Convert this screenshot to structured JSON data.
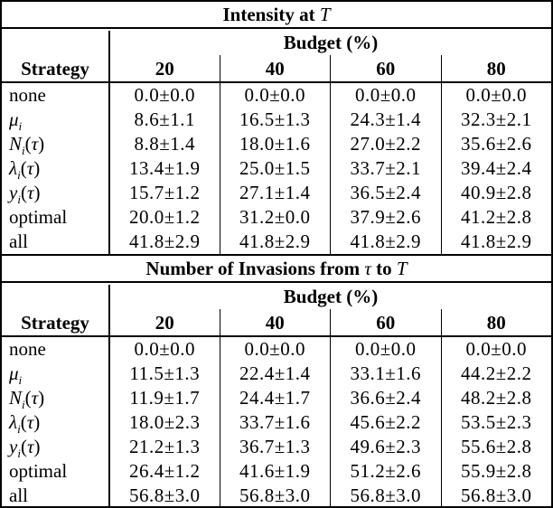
{
  "page": {
    "background": "#ffffff",
    "text_color": "#000000",
    "rule_color": "#000000"
  },
  "tables": [
    {
      "title_segments": [
        {
          "text": "Intensity at ",
          "math": false
        },
        {
          "text": "T",
          "math": true
        }
      ],
      "budget_header": "Budget (%)",
      "strategy_header": "Strategy",
      "budget_columns": [
        "20",
        "40",
        "60",
        "80"
      ],
      "rows": [
        {
          "label": {
            "main": "none",
            "sub": "",
            "suffix": "",
            "math": false,
            "variant": "text"
          },
          "values": [
            "0.0±0.0",
            "0.0±0.0",
            "0.0±0.0",
            "0.0±0.0"
          ]
        },
        {
          "label": {
            "main": "μ",
            "sub": "i",
            "suffix": "",
            "math": true,
            "variant": "greek"
          },
          "values": [
            "8.6±1.1",
            "16.5±1.3",
            "24.3±1.4",
            "32.3±2.1"
          ]
        },
        {
          "label": {
            "main": "N",
            "sub": "i",
            "suffix": "(τ)",
            "math": true,
            "variant": "script"
          },
          "values": [
            "8.8±1.4",
            "18.0±1.6",
            "27.0±2.2",
            "35.6±2.6"
          ]
        },
        {
          "label": {
            "main": "λ",
            "sub": "i",
            "suffix": "(τ)",
            "math": true,
            "variant": "greek"
          },
          "values": [
            "13.4±1.9",
            "25.0±1.5",
            "33.7±2.1",
            "39.4±2.4"
          ]
        },
        {
          "label": {
            "main": "y",
            "sub": "i",
            "suffix": "(τ)",
            "math": true,
            "variant": "latin"
          },
          "values": [
            "15.7±1.2",
            "27.1±1.4",
            "36.5±2.4",
            "40.9±2.8"
          ]
        },
        {
          "label": {
            "main": "optimal",
            "sub": "",
            "suffix": "",
            "math": false,
            "variant": "text"
          },
          "values": [
            "20.0±1.2",
            "31.2±0.0",
            "37.9±2.6",
            "41.2±2.8"
          ]
        },
        {
          "label": {
            "main": "all",
            "sub": "",
            "suffix": "",
            "math": false,
            "variant": "text"
          },
          "values": [
            "41.8±2.9",
            "41.8±2.9",
            "41.8±2.9",
            "41.8±2.9"
          ]
        }
      ]
    },
    {
      "title_segments": [
        {
          "text": "Number of Invasions from ",
          "math": false
        },
        {
          "text": "τ",
          "math": true
        },
        {
          "text": " to ",
          "math": false
        },
        {
          "text": "T",
          "math": true
        }
      ],
      "budget_header": "Budget (%)",
      "strategy_header": "Strategy",
      "budget_columns": [
        "20",
        "40",
        "60",
        "80"
      ],
      "rows": [
        {
          "label": {
            "main": "none",
            "sub": "",
            "suffix": "",
            "math": false,
            "variant": "text"
          },
          "values": [
            "0.0±0.0",
            "0.0±0.0",
            "0.0±0.0",
            "0.0±0.0"
          ]
        },
        {
          "label": {
            "main": "μ",
            "sub": "i",
            "suffix": "",
            "math": true,
            "variant": "greek"
          },
          "values": [
            "11.5±1.3",
            "22.4±1.4",
            "33.1±1.6",
            "44.2±2.2"
          ]
        },
        {
          "label": {
            "main": "N",
            "sub": "i",
            "suffix": "(τ)",
            "math": true,
            "variant": "script"
          },
          "values": [
            "11.9±1.7",
            "24.4±1.7",
            "36.6±2.4",
            "48.2±2.8"
          ]
        },
        {
          "label": {
            "main": "λ",
            "sub": "i",
            "suffix": "(τ)",
            "math": true,
            "variant": "greek"
          },
          "values": [
            "18.0±2.3",
            "33.7±1.6",
            "45.6±2.2",
            "53.5±2.3"
          ]
        },
        {
          "label": {
            "main": "y",
            "sub": "i",
            "suffix": "(τ)",
            "math": true,
            "variant": "latin"
          },
          "values": [
            "21.2±1.3",
            "36.7±1.3",
            "49.6±2.3",
            "55.6±2.8"
          ]
        },
        {
          "label": {
            "main": "optimal",
            "sub": "",
            "suffix": "",
            "math": false,
            "variant": "text"
          },
          "values": [
            "26.4±1.2",
            "41.6±1.9",
            "51.2±2.6",
            "55.9±2.8"
          ]
        },
        {
          "label": {
            "main": "all",
            "sub": "",
            "suffix": "",
            "math": false,
            "variant": "text"
          },
          "values": [
            "56.8±3.0",
            "56.8±3.0",
            "56.8±3.0",
            "56.8±3.0"
          ]
        }
      ]
    }
  ]
}
